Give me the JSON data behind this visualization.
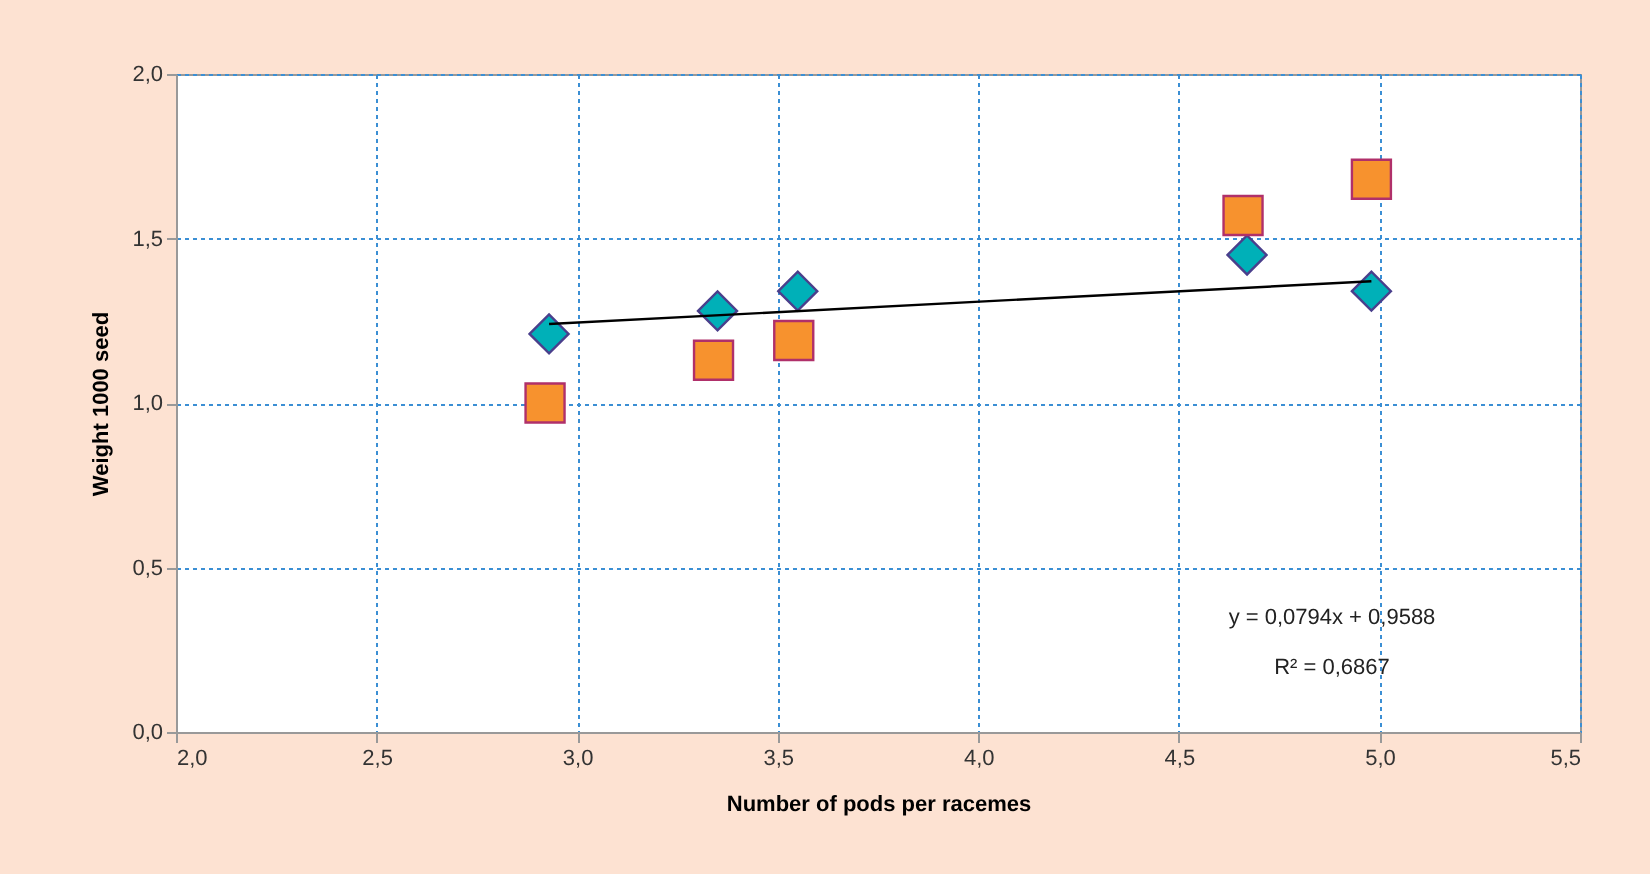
{
  "chart_data": {
    "type": "scatter",
    "xlabel": "Number of pods per racemes",
    "ylabel": "Weight 1000 seed",
    "xlim": [
      2.0,
      5.5
    ],
    "ylim": [
      0.0,
      2.0
    ],
    "xticks": [
      {
        "value": 2.0,
        "label": "2,0"
      },
      {
        "value": 2.5,
        "label": "2,5"
      },
      {
        "value": 3.0,
        "label": "3,0"
      },
      {
        "value": 3.5,
        "label": "3,5"
      },
      {
        "value": 4.0,
        "label": "4,0"
      },
      {
        "value": 4.5,
        "label": "4,5"
      },
      {
        "value": 5.0,
        "label": "5,0"
      },
      {
        "value": 5.5,
        "label": "5,5"
      }
    ],
    "yticks": [
      {
        "value": 0.0,
        "label": "0,0"
      },
      {
        "value": 0.5,
        "label": "0,5"
      },
      {
        "value": 1.0,
        "label": "1,0"
      },
      {
        "value": 1.5,
        "label": "1,5"
      },
      {
        "value": 2.0,
        "label": "2,0"
      }
    ],
    "grid": true,
    "series": [
      {
        "type": "line",
        "color": "#000000",
        "marker": "none",
        "x": [
          2.93,
          4.98
        ],
        "values": [
          1.24,
          1.37
        ]
      },
      {
        "color": "#00b0b8",
        "marker": "diamond",
        "x": [
          2.93,
          3.35,
          3.55,
          4.67,
          4.98
        ],
        "values": [
          1.21,
          1.28,
          1.34,
          1.45,
          1.34
        ]
      },
      {
        "color": "#f7922e",
        "marker": "square",
        "x": [
          2.92,
          3.34,
          3.54,
          4.66,
          4.98
        ],
        "values": [
          1.0,
          1.13,
          1.19,
          1.57,
          1.68
        ]
      }
    ],
    "annotations": [
      "y = 0,0794x + 0,9588",
      "R² = 0,6867"
    ]
  }
}
